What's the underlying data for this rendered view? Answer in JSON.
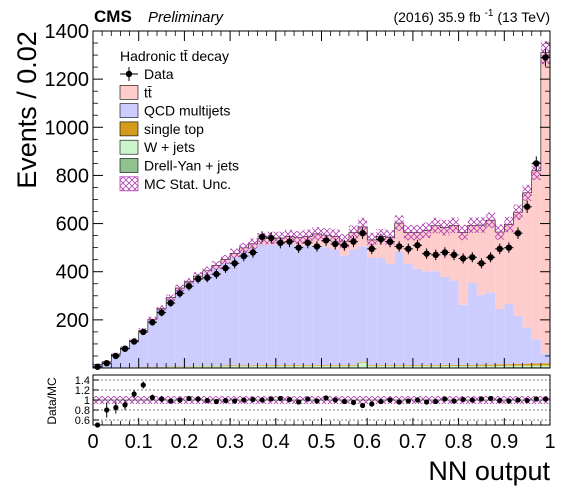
{
  "header": {
    "experiment": "CMS",
    "status": "Preliminary",
    "lumi_prefix": "(2016) 35.9 fb",
    "lumi_exp": "-1",
    "lumi_suffix": " (13 TeV)"
  },
  "chart_data": {
    "type": "bar",
    "stacked_histogram": true,
    "xlabel": "NN output",
    "ylabel": "Events / 0.02",
    "ylim": [
      0,
      1400
    ],
    "xlim": [
      0,
      1
    ],
    "xticks": [
      "0",
      "0.1",
      "0.2",
      "0.3",
      "0.4",
      "0.5",
      "0.6",
      "0.7",
      "0.8",
      "0.9",
      "1"
    ],
    "yticks": [
      "200",
      "400",
      "600",
      "800",
      "1000",
      "1200",
      "1400"
    ],
    "legend_title": "Hadronic tt̄ decay",
    "legend_placement": "top-left",
    "x": [
      0.01,
      0.03,
      0.05,
      0.07,
      0.09,
      0.11,
      0.13,
      0.15,
      0.17,
      0.19,
      0.21,
      0.23,
      0.25,
      0.27,
      0.29,
      0.31,
      0.33,
      0.35,
      0.37,
      0.39,
      0.41,
      0.43,
      0.45,
      0.47,
      0.49,
      0.51,
      0.53,
      0.55,
      0.57,
      0.59,
      0.61,
      0.63,
      0.65,
      0.67,
      0.69,
      0.71,
      0.73,
      0.75,
      0.77,
      0.79,
      0.81,
      0.83,
      0.85,
      0.87,
      0.89,
      0.91,
      0.93,
      0.95,
      0.97,
      0.99
    ],
    "series": [
      {
        "name": "Drell-Yan + jets",
        "color": "#8fc28f",
        "values": [
          0,
          0,
          0,
          0,
          1,
          1,
          1,
          2,
          2,
          2,
          2,
          3,
          3,
          3,
          3,
          3,
          3,
          3,
          3,
          3,
          3,
          3,
          3,
          3,
          3,
          3,
          3,
          3,
          3,
          3,
          3,
          3,
          3,
          3,
          3,
          3,
          3,
          3,
          3,
          3,
          3,
          3,
          3,
          3,
          3,
          4,
          4,
          4,
          4,
          4
        ]
      },
      {
        "name": "W + jets",
        "color": "#ccf5cc",
        "values": [
          0,
          0,
          1,
          1,
          1,
          2,
          2,
          2,
          3,
          3,
          3,
          4,
          4,
          4,
          5,
          5,
          5,
          5,
          6,
          6,
          6,
          6,
          6,
          6,
          6,
          6,
          6,
          6,
          6,
          20,
          6,
          6,
          6,
          6,
          6,
          6,
          6,
          6,
          6,
          6,
          6,
          6,
          6,
          6,
          6,
          6,
          6,
          6,
          6,
          6
        ]
      },
      {
        "name": "single top",
        "color": "#d49b1c",
        "values": [
          0,
          0,
          0,
          1,
          1,
          1,
          1,
          1,
          2,
          2,
          2,
          2,
          2,
          2,
          3,
          3,
          3,
          3,
          3,
          3,
          3,
          3,
          3,
          3,
          3,
          3,
          3,
          3,
          3,
          3,
          3,
          3,
          3,
          3,
          3,
          3,
          3,
          3,
          4,
          4,
          4,
          4,
          5,
          5,
          6,
          6,
          7,
          8,
          9,
          10
        ]
      },
      {
        "name": "QCD multijets",
        "color": "#ccccff",
        "values": [
          15,
          25,
          55,
          80,
          110,
          150,
          195,
          240,
          280,
          320,
          345,
          365,
          385,
          405,
          425,
          450,
          470,
          485,
          500,
          500,
          500,
          505,
          495,
          495,
          500,
          490,
          480,
          455,
          480,
          480,
          445,
          445,
          420,
          470,
          420,
          400,
          390,
          390,
          365,
          350,
          250,
          340,
          290,
          300,
          230,
          250,
          200,
          150,
          100,
          40
        ]
      },
      {
        "name": "tt̄",
        "color": "#ffcccc",
        "values": [
          0,
          0,
          1,
          1,
          2,
          2,
          3,
          3,
          5,
          5,
          6,
          8,
          10,
          12,
          15,
          15,
          18,
          20,
          25,
          28,
          28,
          30,
          35,
          40,
          45,
          50,
          55,
          60,
          70,
          80,
          75,
          90,
          110,
          120,
          130,
          150,
          170,
          190,
          205,
          230,
          300,
          240,
          290,
          300,
          320,
          330,
          430,
          560,
          700,
          1250
        ]
      }
    ],
    "mc_stat_unc_name": "MC Stat. Unc.",
    "mc_stat_unc": [
      3,
      4,
      6,
      8,
      9,
      10,
      11,
      12,
      13,
      14,
      15,
      16,
      17,
      18,
      19,
      20,
      21,
      22,
      24,
      26,
      26,
      27,
      27,
      28,
      28,
      29,
      29,
      30,
      30,
      38,
      30,
      31,
      31,
      32,
      32,
      32,
      32,
      32,
      32,
      32,
      32,
      32,
      32,
      32,
      32,
      32,
      32,
      33,
      38,
      48
    ],
    "data": {
      "name": "Data",
      "values": [
        5,
        20,
        50,
        80,
        110,
        150,
        190,
        230,
        270,
        310,
        340,
        370,
        375,
        390,
        415,
        435,
        465,
        480,
        545,
        540,
        520,
        525,
        500,
        520,
        505,
        530,
        515,
        510,
        525,
        560,
        495,
        535,
        525,
        505,
        495,
        510,
        475,
        470,
        480,
        470,
        455,
        460,
        435,
        460,
        495,
        500,
        560,
        670,
        850,
        1290
      ],
      "errors": [
        3,
        5,
        7,
        9,
        11,
        12,
        14,
        15,
        16,
        18,
        18,
        19,
        19,
        20,
        20,
        21,
        22,
        22,
        23,
        23,
        23,
        23,
        22,
        23,
        22,
        23,
        23,
        23,
        23,
        24,
        22,
        23,
        23,
        22,
        22,
        23,
        22,
        22,
        22,
        22,
        21,
        21,
        21,
        21,
        22,
        22,
        24,
        26,
        29,
        36
      ]
    },
    "ratio": {
      "ylabel": "Data/MC",
      "ylim": [
        0.5,
        1.5
      ],
      "yticks": [
        "0.6",
        "0.8",
        "1",
        "1.2",
        "1.4"
      ],
      "values": [
        0.35,
        0.8,
        0.85,
        0.9,
        1.12,
        1.3,
        1.05,
        1.02,
        0.98,
        1.0,
        1.03,
        1.02,
        0.99,
        0.97,
        0.99,
        0.98,
        1.0,
        1.01,
        1.0,
        1.02,
        1.03,
        1.01,
        0.96,
        1.02,
        0.98,
        1.04,
        1.0,
        0.97,
        0.95,
        0.89,
        0.92,
        0.97,
        1.0,
        0.96,
        0.98,
        1.0,
        0.96,
        0.97,
        1.02,
        0.98,
        1.01,
        1.0,
        1.02,
        1.03,
        0.99,
        0.98,
        1.0,
        0.99,
        1.02,
        1.02
      ],
      "errors": [
        0.2,
        0.15,
        0.12,
        0.1,
        0.08,
        0.07,
        0.06,
        0.06,
        0.05,
        0.05,
        0.05,
        0.05,
        0.05,
        0.05,
        0.05,
        0.05,
        0.05,
        0.05,
        0.05,
        0.05,
        0.05,
        0.05,
        0.05,
        0.05,
        0.05,
        0.05,
        0.05,
        0.05,
        0.05,
        0.05,
        0.05,
        0.05,
        0.05,
        0.05,
        0.05,
        0.05,
        0.05,
        0.05,
        0.05,
        0.05,
        0.05,
        0.05,
        0.05,
        0.05,
        0.05,
        0.05,
        0.05,
        0.04,
        0.04,
        0.04
      ],
      "unc_band": 0.08
    }
  }
}
